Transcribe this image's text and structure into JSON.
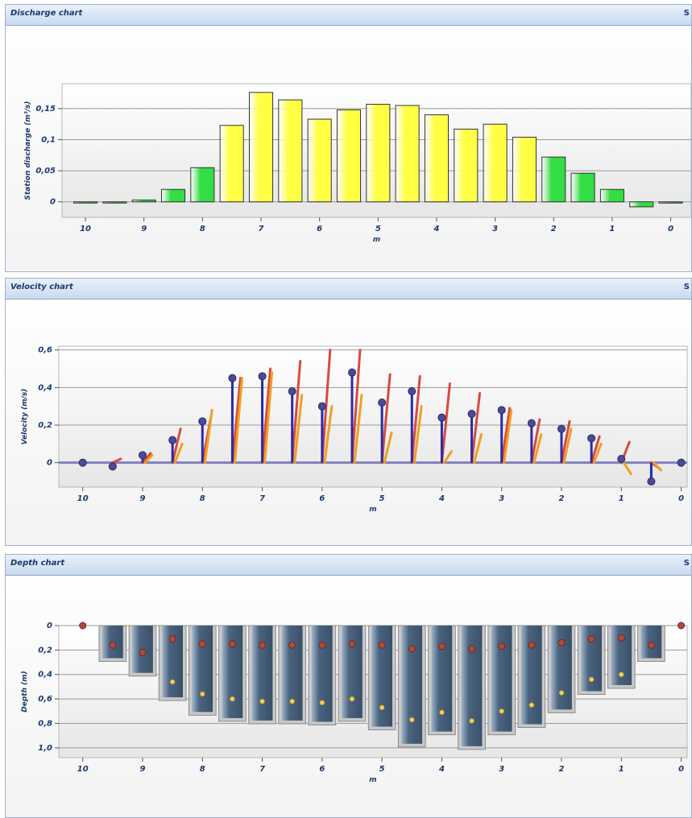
{
  "colors": {
    "discharge_yellow": "#ffff44",
    "discharge_green": "#33dd44",
    "velocity_red": "#d84a40",
    "velocity_orange": "#f0a020",
    "velocity_blue": "#2a2aa8",
    "velocity_marker": "#4a4a9a",
    "depth_bar": "#4a6480",
    "depth_marker_top": "#b04a3a",
    "depth_marker_bottom": "#f0d060"
  },
  "panels": {
    "discharge": {
      "title": "Discharge chart",
      "corner": "S"
    },
    "velocity": {
      "title": "Velocity chart",
      "corner": "S"
    },
    "depth": {
      "title": "Depth chart",
      "corner": "S"
    }
  },
  "chart_data": [
    {
      "id": "discharge",
      "type": "bar",
      "title": "Discharge chart",
      "xlabel": "m",
      "ylabel": "Station discharge (m³/s)",
      "xlim": [
        10.4,
        -0.35
      ],
      "ylim": [
        -0.025,
        0.19
      ],
      "xticks": [
        {
          "v": 10,
          "label": "10"
        },
        {
          "v": 9,
          "label": "9"
        },
        {
          "v": 8,
          "label": "8"
        },
        {
          "v": 7,
          "label": "7"
        },
        {
          "v": 6,
          "label": "6"
        },
        {
          "v": 5,
          "label": "5"
        },
        {
          "v": 4,
          "label": "4"
        },
        {
          "v": 3,
          "label": "3"
        },
        {
          "v": 2,
          "label": "2"
        },
        {
          "v": 1,
          "label": "1"
        },
        {
          "v": 0,
          "label": "0"
        }
      ],
      "yticks": [
        {
          "v": 0,
          "label": "0"
        },
        {
          "v": 0.05,
          "label": "0,05"
        },
        {
          "v": 0.1,
          "label": "0,1"
        },
        {
          "v": 0.15,
          "label": "0,15"
        }
      ],
      "bar_width": 0.4,
      "x": [
        10,
        9.5,
        9,
        8.5,
        8,
        7.5,
        7,
        6.5,
        6,
        5.5,
        5,
        4.5,
        4,
        3.5,
        3,
        2.5,
        2,
        1.5,
        1,
        0.5,
        0
      ],
      "values": [
        0,
        0,
        0.003,
        0.02,
        0.055,
        0.123,
        0.176,
        0.164,
        0.133,
        0.148,
        0.157,
        0.155,
        0.14,
        0.117,
        0.125,
        0.104,
        0.072,
        0.046,
        0.02,
        -0.008,
        -0.002
      ],
      "categories_color": [
        "green",
        "green",
        "green",
        "green",
        "green",
        "yellow",
        "yellow",
        "yellow",
        "yellow",
        "yellow",
        "yellow",
        "yellow",
        "yellow",
        "yellow",
        "yellow",
        "yellow",
        "green",
        "green",
        "green",
        "green",
        "green"
      ]
    },
    {
      "id": "velocity",
      "type": "scatter",
      "title": "Velocity chart",
      "xlabel": "m",
      "ylabel": "Velocity (m/s)",
      "xlim": [
        10.4,
        -0.1
      ],
      "ylim": [
        -0.13,
        0.62
      ],
      "xticks": [
        {
          "v": 10,
          "label": "10"
        },
        {
          "v": 9,
          "label": "9"
        },
        {
          "v": 8,
          "label": "8"
        },
        {
          "v": 7,
          "label": "7"
        },
        {
          "v": 6,
          "label": "6"
        },
        {
          "v": 5,
          "label": "5"
        },
        {
          "v": 4,
          "label": "4"
        },
        {
          "v": 3,
          "label": "3"
        },
        {
          "v": 2,
          "label": "2"
        },
        {
          "v": 1,
          "label": "1"
        },
        {
          "v": 0,
          "label": "0"
        }
      ],
      "yticks": [
        {
          "v": 0,
          "label": "0"
        },
        {
          "v": 0.2,
          "label": "0,2"
        },
        {
          "v": 0.4,
          "label": "0,4"
        },
        {
          "v": 0.6,
          "label": "0,6"
        }
      ],
      "points": [
        {
          "x": 10,
          "mean": 0,
          "red": 0,
          "orange": 0
        },
        {
          "x": 9.5,
          "mean": -0.02,
          "red": 0.02,
          "orange": 0
        },
        {
          "x": 9,
          "mean": 0.04,
          "red": 0.05,
          "orange": 0.04
        },
        {
          "x": 8.5,
          "mean": 0.12,
          "red": 0.18,
          "orange": 0.1
        },
        {
          "x": 8,
          "mean": 0.22,
          "red": 0.23,
          "orange": 0.28
        },
        {
          "x": 7.5,
          "mean": 0.45,
          "red": 0.45,
          "orange": 0.45
        },
        {
          "x": 7,
          "mean": 0.46,
          "red": 0.5,
          "orange": 0.48
        },
        {
          "x": 6.5,
          "mean": 0.38,
          "red": 0.54,
          "orange": 0.36
        },
        {
          "x": 6,
          "mean": 0.3,
          "red": 0.6,
          "orange": 0.3
        },
        {
          "x": 5.5,
          "mean": 0.48,
          "red": 0.6,
          "orange": 0.36
        },
        {
          "x": 5,
          "mean": 0.32,
          "red": 0.47,
          "orange": 0.16
        },
        {
          "x": 4.5,
          "mean": 0.38,
          "red": 0.46,
          "orange": 0.3
        },
        {
          "x": 4,
          "mean": 0.24,
          "red": 0.42,
          "orange": 0.06
        },
        {
          "x": 3.5,
          "mean": 0.26,
          "red": 0.37,
          "orange": 0.15
        },
        {
          "x": 3,
          "mean": 0.28,
          "red": 0.29,
          "orange": 0.28
        },
        {
          "x": 2.5,
          "mean": 0.21,
          "red": 0.23,
          "orange": 0.15
        },
        {
          "x": 2,
          "mean": 0.18,
          "red": 0.22,
          "orange": 0.18
        },
        {
          "x": 1.5,
          "mean": 0.13,
          "red": 0.14,
          "orange": 0.1
        },
        {
          "x": 1,
          "mean": 0.02,
          "red": 0.11,
          "orange": -0.06
        },
        {
          "x": 0.5,
          "mean": -0.1,
          "red": -0.03,
          "orange": -0.04
        },
        {
          "x": 0,
          "mean": 0,
          "red": 0,
          "orange": 0
        }
      ]
    },
    {
      "id": "depth",
      "type": "bar",
      "title": "Depth chart",
      "xlabel": "m",
      "ylabel": "Depth (m)",
      "xlim": [
        10.4,
        -0.1
      ],
      "ylim": [
        0,
        1.08
      ],
      "xticks": [
        {
          "v": 10,
          "label": "10"
        },
        {
          "v": 9,
          "label": "9"
        },
        {
          "v": 8,
          "label": "8"
        },
        {
          "v": 7,
          "label": "7"
        },
        {
          "v": 6,
          "label": "6"
        },
        {
          "v": 5,
          "label": "5"
        },
        {
          "v": 4,
          "label": "4"
        },
        {
          "v": 3,
          "label": "3"
        },
        {
          "v": 2,
          "label": "2"
        },
        {
          "v": 1,
          "label": "1"
        },
        {
          "v": 0,
          "label": "0"
        }
      ],
      "yticks": [
        {
          "v": 0,
          "label": "0"
        },
        {
          "v": 0.2,
          "label": "0,2"
        },
        {
          "v": 0.4,
          "label": "0,4"
        },
        {
          "v": 0.6,
          "label": "0,6"
        },
        {
          "v": 0.8,
          "label": "0,8"
        },
        {
          "v": 1.0,
          "label": "1,0"
        }
      ],
      "bar_width": 0.4,
      "x": [
        10,
        9.5,
        9,
        8.5,
        8,
        7.5,
        7,
        6.5,
        6,
        5.5,
        5,
        4.5,
        4,
        3.5,
        3,
        2.5,
        2,
        1.5,
        1,
        0.5,
        0
      ],
      "depths": [
        0,
        0.28,
        0.4,
        0.6,
        0.72,
        0.77,
        0.79,
        0.79,
        0.8,
        0.77,
        0.84,
        0.98,
        0.88,
        1.0,
        0.88,
        0.82,
        0.7,
        0.55,
        0.5,
        0.28,
        0
      ],
      "upper_points": [
        0,
        0.16,
        0.22,
        0.11,
        0.15,
        0.15,
        0.16,
        0.16,
        0.16,
        0.15,
        0.16,
        0.19,
        0.17,
        0.19,
        0.17,
        0.16,
        0.14,
        0.11,
        0.1,
        0.16,
        0
      ],
      "lower_points": [
        null,
        null,
        null,
        0.46,
        0.56,
        0.6,
        0.62,
        0.62,
        0.63,
        0.6,
        0.67,
        0.77,
        0.71,
        0.78,
        0.7,
        0.65,
        0.55,
        0.44,
        0.4,
        null,
        null
      ]
    }
  ]
}
